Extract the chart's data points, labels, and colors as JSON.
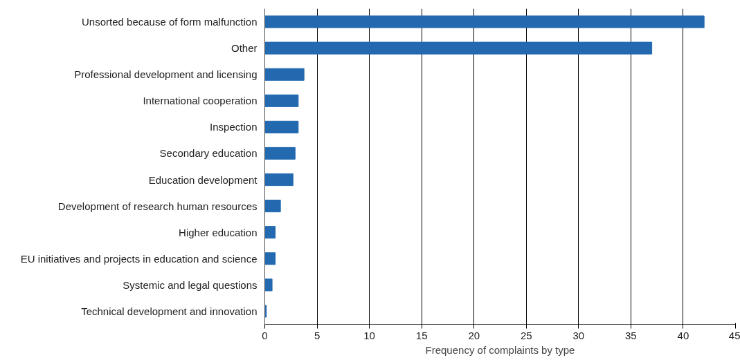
{
  "chart_data": {
    "type": "bar",
    "orientation": "horizontal",
    "xlabel": "Frequency of complaints by type",
    "categories": [
      "Unsorted because of form malfunction",
      "Other",
      "Professional development and licensing",
      "International cooperation",
      "Inspection",
      "Secondary education",
      "Education development",
      "Development of research human resources",
      "Higher education",
      "EU initiatives and projects in education and science",
      "Systemic and legal questions",
      "Technical development and innovation"
    ],
    "values": [
      42,
      37,
      3.75,
      3.2,
      3.2,
      2.9,
      2.7,
      1.5,
      1.0,
      1.0,
      0.7,
      0.15
    ],
    "color": "#2369b0",
    "xlim": [
      0,
      45
    ],
    "xticks": [
      0,
      5,
      10,
      15,
      20,
      25,
      30,
      35,
      40,
      45
    ],
    "grid": "x"
  }
}
